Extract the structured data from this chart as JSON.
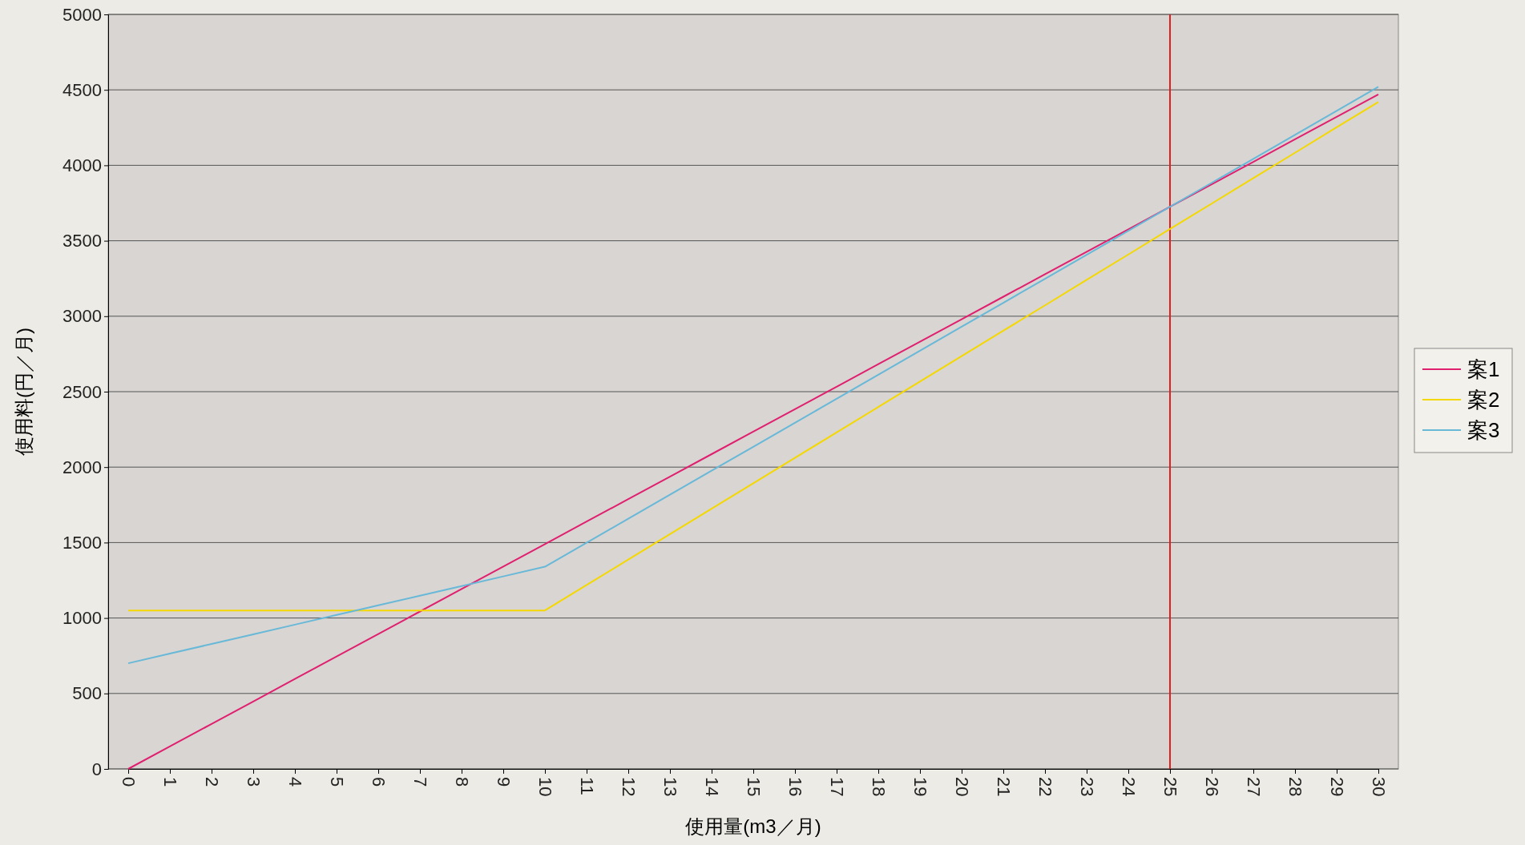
{
  "chart_data": {
    "type": "line",
    "xlabel": "使用量(m3／月)",
    "ylabel": "使用料(円／月)",
    "categories": [
      "0",
      "1",
      "2",
      "3",
      "4",
      "5",
      "6",
      "7",
      "8",
      "9",
      "10",
      "11",
      "12",
      "13",
      "14",
      "15",
      "16",
      "17",
      "18",
      "19",
      "20",
      "21",
      "22",
      "23",
      "24",
      "25",
      "26",
      "27",
      "28",
      "29",
      "30"
    ],
    "series": [
      {
        "name": "案1",
        "color": "#e0206e",
        "values": [
          0,
          149,
          298,
          447,
          596,
          745,
          894,
          1043,
          1192,
          1341,
          1490,
          1639,
          1788,
          1937,
          2086,
          2235,
          2384,
          2533,
          2682,
          2831,
          2980,
          3129,
          3278,
          3427,
          3576,
          3725,
          3874,
          4023,
          4172,
          4321,
          4470
        ]
      },
      {
        "name": "案2",
        "color": "#f5d800",
        "values": [
          1050,
          1050,
          1050,
          1050,
          1050,
          1050,
          1050,
          1050,
          1050,
          1050,
          1050,
          1219,
          1387,
          1556,
          1724,
          1893,
          2061,
          2230,
          2398,
          2567,
          2735,
          2904,
          3072,
          3241,
          3409,
          3578,
          3746,
          3915,
          4083,
          4252,
          4420
        ]
      },
      {
        "name": "案3",
        "color": "#68b8d8",
        "values": [
          700,
          764,
          828,
          892,
          956,
          1020,
          1084,
          1148,
          1212,
          1276,
          1340,
          1499,
          1658,
          1817,
          1976,
          2135,
          2294,
          2453,
          2612,
          2771,
          2930,
          3089,
          3248,
          3407,
          3566,
          3725,
          3884,
          4043,
          4202,
          4361,
          4520
        ]
      }
    ],
    "ylim": [
      0,
      5000
    ],
    "yticks": [
      0,
      500,
      1000,
      1500,
      2000,
      2500,
      3000,
      3500,
      4000,
      4500,
      5000
    ],
    "grid": "y",
    "legend": "right",
    "marker": "none",
    "line_style": "solid",
    "ref_lines": [
      {
        "axis": "x",
        "value": "25",
        "color": "#e02020"
      }
    ]
  }
}
